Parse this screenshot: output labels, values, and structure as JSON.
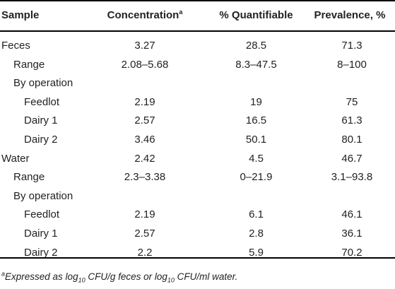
{
  "table": {
    "headers": {
      "sample": "Sample",
      "concentration": "Concentration",
      "concentration_sup": "a",
      "quantifiable": "% Quantifiable",
      "prevalence": "Prevalence, %"
    },
    "rows": [
      {
        "label": "Feces",
        "indent": 0,
        "concentration": "3.27",
        "quantifiable": "28.5",
        "prevalence": "71.3"
      },
      {
        "label": "Range",
        "indent": 1,
        "concentration": "2.08–5.68",
        "quantifiable": "8.3–47.5",
        "prevalence": "8–100"
      },
      {
        "label": "By operation",
        "indent": 1,
        "concentration": "",
        "quantifiable": "",
        "prevalence": ""
      },
      {
        "label": "Feedlot",
        "indent": 2,
        "concentration": "2.19",
        "quantifiable": "19",
        "prevalence": "75"
      },
      {
        "label": "Dairy 1",
        "indent": 2,
        "concentration": "2.57",
        "quantifiable": "16.5",
        "prevalence": "61.3"
      },
      {
        "label": "Dairy 2",
        "indent": 2,
        "concentration": "3.46",
        "quantifiable": "50.1",
        "prevalence": "80.1"
      },
      {
        "label": "Water",
        "indent": 0,
        "concentration": "2.42",
        "quantifiable": "4.5",
        "prevalence": "46.7"
      },
      {
        "label": "Range",
        "indent": 1,
        "concentration": "2.3–3.38",
        "quantifiable": "0–21.9",
        "prevalence": "3.1–93.8"
      },
      {
        "label": "By operation",
        "indent": 1,
        "concentration": "",
        "quantifiable": "",
        "prevalence": ""
      },
      {
        "label": "Feedlot",
        "indent": 2,
        "concentration": "2.19",
        "quantifiable": "6.1",
        "prevalence": "46.1"
      },
      {
        "label": "Dairy 1",
        "indent": 2,
        "concentration": "2.57",
        "quantifiable": "2.8",
        "prevalence": "36.1"
      },
      {
        "label": "Dairy 2",
        "indent": 2,
        "concentration": "2.2",
        "quantifiable": "5.9",
        "prevalence": "70.2"
      }
    ]
  },
  "footnote": {
    "marker": "a",
    "part1": "Expressed as log",
    "sub1": "10",
    "part2": " CFU/g feces or log",
    "sub2": "10",
    "part3": " CFU/ml water."
  }
}
